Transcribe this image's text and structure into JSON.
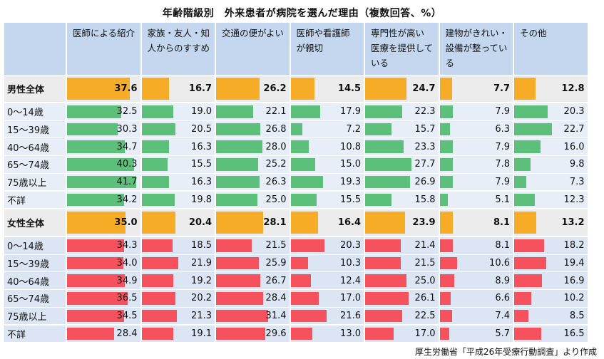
{
  "title": "年齢階級別　外来患者が病院を選んだ理由（複数回答、%）",
  "source": "厚生労働省「平成26年受療行動調査」より作成",
  "colors": {
    "header_bg": "#c5d7ee",
    "male_row_bg": "#e7eef8",
    "female_row_bg": "#dbe5f3",
    "total_row_bg": "#ececec",
    "male_bar": "#5cc07a",
    "female_bar": "#f5525e",
    "total_bar": "#f7ac28"
  },
  "chart_data": {
    "type": "table",
    "title": "年齢階級別　外来患者が病院を選んだ理由（複数回答、%）",
    "columns": [
      "医師による紹介",
      "家族・友人・知人からのすすめ",
      "交通の便がよい",
      "医師や看護師が親切",
      "専門性が高い医療を提供している",
      "建物がきれい・設備が整っている",
      "その他"
    ],
    "groups": [
      {
        "total": {
          "label": "男性全体",
          "values": [
            37.6,
            16.7,
            26.2,
            14.5,
            24.7,
            7.7,
            12.8
          ]
        },
        "rows": [
          {
            "label": "0～14歳",
            "values": [
              32.5,
              19.0,
              22.1,
              17.9,
              22.3,
              7.9,
              20.3
            ]
          },
          {
            "label": "15～39歳",
            "values": [
              30.3,
              20.5,
              26.8,
              7.2,
              15.7,
              6.3,
              22.7
            ]
          },
          {
            "label": "40～64歳",
            "values": [
              34.7,
              16.3,
              28.0,
              10.8,
              23.3,
              7.9,
              16.0
            ]
          },
          {
            "label": "65～74歳",
            "values": [
              40.3,
              15.5,
              25.2,
              15.0,
              27.7,
              7.8,
              9.8
            ]
          },
          {
            "label": "75歳以上",
            "values": [
              41.7,
              16.3,
              26.3,
              19.3,
              26.9,
              7.9,
              7.3
            ]
          },
          {
            "label": "不詳",
            "values": [
              34.2,
              19.8,
              25.0,
              15.5,
              15.8,
              5.1,
              12.3
            ]
          }
        ]
      },
      {
        "total": {
          "label": "女性全体",
          "values": [
            35.0,
            20.4,
            28.1,
            16.4,
            23.9,
            8.1,
            13.2
          ]
        },
        "rows": [
          {
            "label": "0～14歳",
            "values": [
              34.3,
              18.5,
              21.5,
              20.3,
              21.4,
              8.1,
              18.2
            ]
          },
          {
            "label": "15～39歳",
            "values": [
              34.0,
              21.9,
              25.9,
              10.3,
              21.5,
              10.6,
              19.4
            ]
          },
          {
            "label": "40～64歳",
            "values": [
              34.9,
              19.2,
              26.7,
              12.4,
              25.0,
              8.9,
              16.9
            ]
          },
          {
            "label": "65～74歳",
            "values": [
              36.5,
              20.2,
              28.4,
              17.0,
              26.1,
              6.6,
              10.2
            ]
          },
          {
            "label": "75歳以上",
            "values": [
              34.5,
              21.3,
              31.4,
              21.6,
              22.5,
              7.4,
              8.5
            ]
          },
          {
            "label": "不詳",
            "values": [
              28.4,
              19.1,
              29.6,
              13.0,
              17.0,
              5.7,
              16.5
            ]
          }
        ]
      }
    ],
    "header_lines": [
      [
        "医師による紹介"
      ],
      [
        "家族・友人・知",
        "人からのすすめ"
      ],
      [
        "交通の便がよい"
      ],
      [
        "医師や看護師",
        "が親切"
      ],
      [
        "専門性が高い",
        "医療を提供して",
        "いる"
      ],
      [
        "建物がきれい・",
        "設備が整ってい",
        "る"
      ],
      [
        "その他"
      ]
    ]
  }
}
